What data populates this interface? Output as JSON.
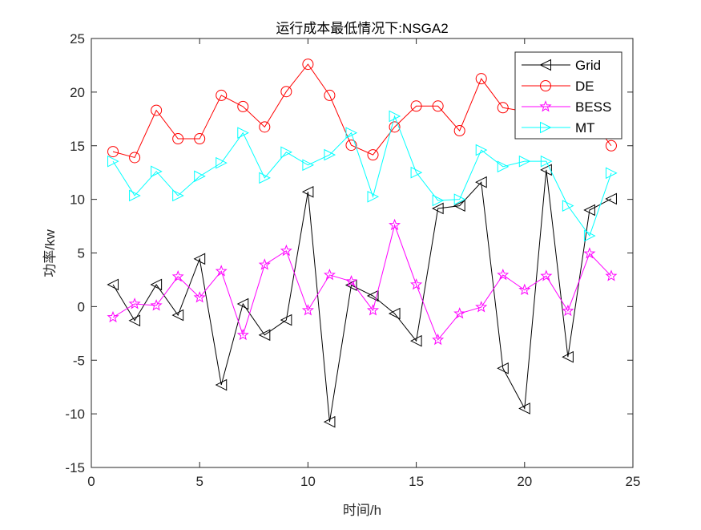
{
  "chart_data": {
    "type": "line",
    "title": "运行成本最低情况下:NSGA2",
    "xlabel": "时间/h",
    "ylabel": "功率/kw",
    "xlim": [
      0,
      25
    ],
    "ylim": [
      -15,
      25
    ],
    "xticks": [
      0,
      5,
      10,
      15,
      20,
      25
    ],
    "yticks": [
      -15,
      -10,
      -5,
      0,
      5,
      10,
      15,
      20,
      25
    ],
    "xtick_labels": [
      "0",
      "5",
      "10",
      "15",
      "20",
      "25"
    ],
    "ytick_labels": [
      "-15",
      "-10",
      "-5",
      "0",
      "5",
      "10",
      "15",
      "20",
      "25"
    ],
    "grid": false,
    "legend_position": "top-right",
    "x": [
      1,
      2,
      3,
      4,
      5,
      6,
      7,
      8,
      9,
      10,
      11,
      12,
      13,
      14,
      15,
      16,
      17,
      18,
      19,
      20,
      21,
      22,
      23,
      24
    ],
    "series": [
      {
        "name": "Grid",
        "color": "#000000",
        "marker": "triangle-left",
        "values": [
          2.05,
          -1.3,
          2.05,
          -0.8,
          4.45,
          -7.3,
          0.25,
          -2.65,
          -1.25,
          10.7,
          -10.75,
          2.0,
          1.0,
          -0.65,
          -3.2,
          9.15,
          9.4,
          11.6,
          -5.75,
          -9.5,
          12.75,
          -4.7,
          9.0,
          10.05
        ]
      },
      {
        "name": "DE",
        "color": "#ff0000",
        "marker": "circle",
        "values": [
          14.45,
          13.9,
          18.3,
          15.65,
          15.65,
          19.7,
          18.65,
          16.75,
          20.05,
          22.6,
          19.7,
          15.05,
          14.15,
          16.75,
          18.7,
          18.7,
          16.4,
          21.25,
          18.55,
          18.2,
          18.0,
          16.8,
          17.6,
          15.0
        ]
      },
      {
        "name": "BESS",
        "color": "#ff00ff",
        "marker": "star",
        "values": [
          -1.0,
          0.25,
          0.1,
          2.8,
          0.85,
          3.3,
          -2.65,
          3.9,
          5.2,
          -0.35,
          2.95,
          2.35,
          -0.35,
          7.6,
          2.05,
          -3.1,
          -0.65,
          -0.05,
          2.95,
          1.55,
          2.85,
          -0.4,
          4.95,
          2.85
        ]
      },
      {
        "name": "MT",
        "color": "#00ffff",
        "marker": "triangle-right",
        "values": [
          13.55,
          10.35,
          12.6,
          10.35,
          12.15,
          13.4,
          16.2,
          12.0,
          14.4,
          13.2,
          14.15,
          16.2,
          10.25,
          17.75,
          12.5,
          9.9,
          10.0,
          14.6,
          13.05,
          13.55,
          13.55,
          9.4,
          6.6,
          12.45
        ]
      }
    ]
  }
}
